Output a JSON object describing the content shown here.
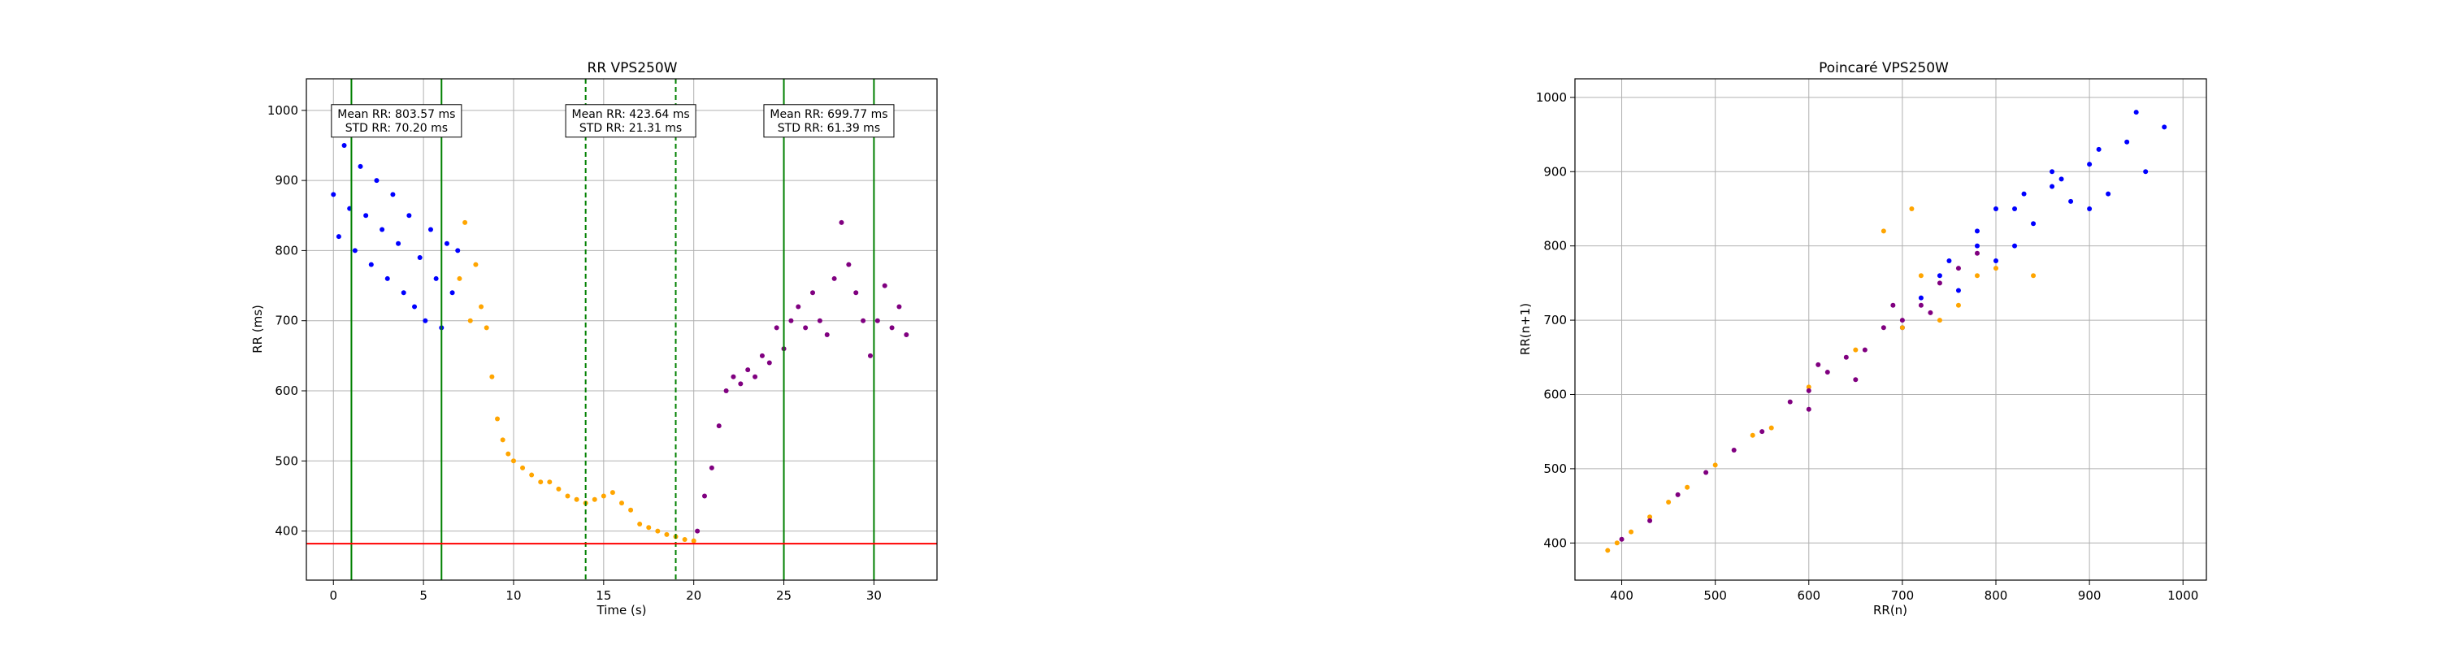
{
  "figure": {
    "background": "#ffffff"
  },
  "chart_data": [
    {
      "type": "scatter",
      "title": "RR VPS250W",
      "xlabel": "Time (s)",
      "ylabel": "RR (ms)",
      "xlim": [
        -1.5,
        33.5
      ],
      "ylim": [
        330,
        1045
      ],
      "xticks": [
        0,
        5,
        10,
        15,
        20,
        25,
        30
      ],
      "yticks": [
        400,
        500,
        600,
        700,
        800,
        900,
        1000
      ],
      "grid": true,
      "vertical_lines": [
        {
          "x": 1,
          "style": "solid",
          "color": "#008000"
        },
        {
          "x": 6,
          "style": "solid",
          "color": "#008000"
        },
        {
          "x": 14,
          "style": "dashed",
          "color": "#008000"
        },
        {
          "x": 19,
          "style": "dashed",
          "color": "#008000"
        },
        {
          "x": 25,
          "style": "solid",
          "color": "#008000"
        },
        {
          "x": 30,
          "style": "solid",
          "color": "#008000"
        }
      ],
      "horizontal_lines": [
        {
          "y": 382,
          "color": "#ff0000"
        }
      ],
      "annotations": [
        {
          "x": 3.5,
          "y": 985,
          "lines": [
            "Mean RR: 803.57 ms",
            "STD RR: 70.20 ms"
          ]
        },
        {
          "x": 16.5,
          "y": 985,
          "lines": [
            "Mean RR: 423.64 ms",
            "STD RR: 21.31 ms"
          ]
        },
        {
          "x": 27.5,
          "y": 985,
          "lines": [
            "Mean RR: 699.77 ms",
            "STD RR: 61.39 ms"
          ]
        }
      ],
      "series": [
        {
          "color": "#0000ff",
          "points": [
            [
              0.0,
              880
            ],
            [
              0.3,
              820
            ],
            [
              0.6,
              950
            ],
            [
              0.9,
              860
            ],
            [
              1.2,
              800
            ],
            [
              1.5,
              920
            ],
            [
              1.8,
              850
            ],
            [
              2.1,
              780
            ],
            [
              2.4,
              900
            ],
            [
              2.7,
              830
            ],
            [
              3.0,
              760
            ],
            [
              3.3,
              880
            ],
            [
              3.6,
              810
            ],
            [
              3.9,
              740
            ],
            [
              4.2,
              850
            ],
            [
              4.5,
              720
            ],
            [
              4.8,
              790
            ],
            [
              5.1,
              700
            ],
            [
              5.4,
              830
            ],
            [
              5.7,
              760
            ],
            [
              6.0,
              690
            ],
            [
              6.3,
              810
            ],
            [
              6.6,
              740
            ],
            [
              6.9,
              800
            ]
          ]
        },
        {
          "color": "#ffa500",
          "points": [
            [
              7.0,
              760
            ],
            [
              7.3,
              840
            ],
            [
              7.6,
              700
            ],
            [
              7.9,
              780
            ],
            [
              8.2,
              720
            ],
            [
              8.5,
              690
            ],
            [
              8.8,
              620
            ],
            [
              9.1,
              560
            ],
            [
              9.4,
              530
            ],
            [
              9.7,
              510
            ],
            [
              10.0,
              500
            ],
            [
              10.5,
              490
            ],
            [
              11.0,
              480
            ],
            [
              11.5,
              470
            ],
            [
              12.0,
              470
            ],
            [
              12.5,
              460
            ],
            [
              13.0,
              450
            ],
            [
              13.5,
              445
            ],
            [
              14.0,
              440
            ],
            [
              14.5,
              445
            ],
            [
              15.0,
              450
            ],
            [
              15.5,
              455
            ],
            [
              16.0,
              440
            ],
            [
              16.5,
              430
            ],
            [
              17.0,
              410
            ],
            [
              17.5,
              405
            ],
            [
              18.0,
              400
            ],
            [
              18.5,
              395
            ],
            [
              19.0,
              392
            ],
            [
              19.5,
              388
            ],
            [
              20.0,
              386
            ]
          ]
        },
        {
          "color": "#800080",
          "points": [
            [
              20.2,
              400
            ],
            [
              20.6,
              450
            ],
            [
              21.0,
              490
            ],
            [
              21.4,
              550
            ],
            [
              21.8,
              600
            ],
            [
              22.2,
              620
            ],
            [
              22.6,
              610
            ],
            [
              23.0,
              630
            ],
            [
              23.4,
              620
            ],
            [
              23.8,
              650
            ],
            [
              24.2,
              640
            ],
            [
              24.6,
              690
            ],
            [
              25.0,
              660
            ],
            [
              25.4,
              700
            ],
            [
              25.8,
              720
            ],
            [
              26.2,
              690
            ],
            [
              26.6,
              740
            ],
            [
              27.0,
              700
            ],
            [
              27.4,
              680
            ],
            [
              27.8,
              760
            ],
            [
              28.2,
              840
            ],
            [
              28.6,
              780
            ],
            [
              29.0,
              740
            ],
            [
              29.4,
              700
            ],
            [
              29.8,
              650
            ],
            [
              30.2,
              700
            ],
            [
              30.6,
              750
            ],
            [
              31.0,
              690
            ],
            [
              31.4,
              720
            ],
            [
              31.8,
              680
            ]
          ]
        }
      ]
    },
    {
      "type": "scatter",
      "title": "Poincaré VPS250W",
      "xlabel": "RR(n)",
      "ylabel": "RR(n+1)",
      "xlim": [
        350,
        1025
      ],
      "ylim": [
        350,
        1025
      ],
      "xticks": [
        400,
        500,
        600,
        700,
        800,
        900,
        1000
      ],
      "yticks": [
        400,
        500,
        600,
        700,
        800,
        900,
        1000
      ],
      "grid": true,
      "series": [
        {
          "color": "#0000ff",
          "points": [
            [
              700,
              690
            ],
            [
              720,
              730
            ],
            [
              740,
              760
            ],
            [
              760,
              740
            ],
            [
              780,
              800
            ],
            [
              800,
              780
            ],
            [
              820,
              850
            ],
            [
              840,
              830
            ],
            [
              860,
              880
            ],
            [
              880,
              860
            ],
            [
              900,
              910
            ],
            [
              920,
              870
            ],
            [
              940,
              940
            ],
            [
              960,
              900
            ],
            [
              980,
              960
            ],
            [
              780,
              820
            ],
            [
              820,
              800
            ],
            [
              860,
              900
            ],
            [
              900,
              850
            ],
            [
              750,
              780
            ],
            [
              800,
              850
            ],
            [
              830,
              870
            ],
            [
              870,
              890
            ],
            [
              910,
              930
            ],
            [
              950,
              980
            ]
          ]
        },
        {
          "color": "#ffa500",
          "points": [
            [
              385,
              390
            ],
            [
              395,
              400
            ],
            [
              410,
              415
            ],
            [
              430,
              435
            ],
            [
              450,
              455
            ],
            [
              470,
              475
            ],
            [
              500,
              505
            ],
            [
              540,
              545
            ],
            [
              560,
              555
            ],
            [
              600,
              610
            ],
            [
              650,
              660
            ],
            [
              700,
              690
            ],
            [
              720,
              760
            ],
            [
              740,
              700
            ],
            [
              760,
              720
            ],
            [
              780,
              760
            ],
            [
              800,
              770
            ],
            [
              840,
              760
            ],
            [
              680,
              820
            ],
            [
              710,
              850
            ]
          ]
        },
        {
          "color": "#800080",
          "points": [
            [
              400,
              405
            ],
            [
              430,
              430
            ],
            [
              460,
              465
            ],
            [
              490,
              495
            ],
            [
              520,
              525
            ],
            [
              550,
              550
            ],
            [
              580,
              590
            ],
            [
              600,
              605
            ],
            [
              620,
              630
            ],
            [
              640,
              650
            ],
            [
              660,
              660
            ],
            [
              680,
              690
            ],
            [
              700,
              700
            ],
            [
              720,
              720
            ],
            [
              740,
              750
            ],
            [
              760,
              770
            ],
            [
              610,
              640
            ],
            [
              650,
              620
            ],
            [
              690,
              720
            ],
            [
              730,
              710
            ],
            [
              780,
              790
            ],
            [
              600,
              580
            ]
          ]
        }
      ]
    }
  ]
}
